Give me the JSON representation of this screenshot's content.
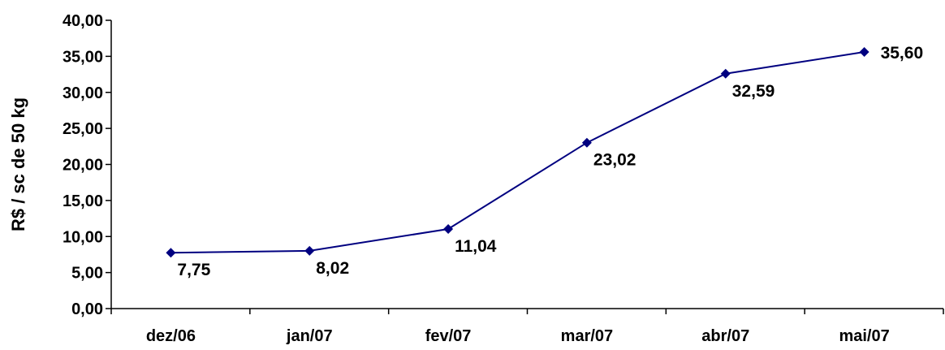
{
  "chart_data": {
    "type": "line",
    "title": "",
    "xlabel": "",
    "ylabel": "R$ / sc de 50 kg",
    "categories": [
      "dez/06",
      "jan/07",
      "fev/07",
      "mar/07",
      "abr/07",
      "mai/07"
    ],
    "series": [
      {
        "values": [
          7.75,
          8.02,
          11.04,
          23.02,
          32.59,
          35.6
        ],
        "data_labels": [
          "7,75",
          "8,02",
          "11,04",
          "23,02",
          "32,59",
          "35,60"
        ],
        "color": "#000080",
        "marker": "diamond"
      }
    ],
    "ylim": [
      0,
      40
    ],
    "yticks": [
      0,
      5,
      10,
      15,
      20,
      25,
      30,
      35,
      40
    ],
    "ytick_labels": [
      "0,00",
      "5,00",
      "10,00",
      "15,00",
      "20,00",
      "25,00",
      "30,00",
      "35,00",
      "40,00"
    ],
    "grid": false,
    "legend": "none"
  }
}
